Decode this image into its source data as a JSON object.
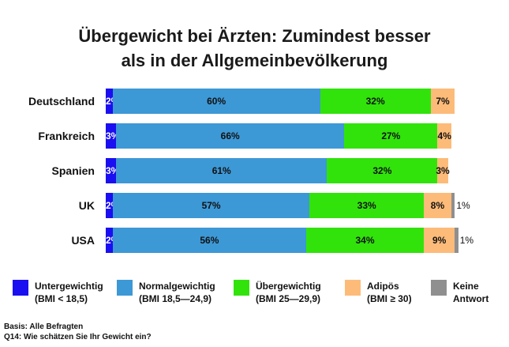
{
  "title_lines": [
    "Übergewicht bei Ärzten: Zumindest besser",
    "als in der Allgemeinbevölkerung"
  ],
  "chart_data": {
    "type": "bar",
    "orientation": "horizontal",
    "stacked": true,
    "title": "Übergewicht bei Ärzten: Zumindest besser als in der Allgemeinbevölkerung",
    "categories": [
      "Deutschland",
      "Frankreich",
      "Spanien",
      "UK",
      "USA"
    ],
    "series": [
      {
        "name": "Untergewichtig (BMI < 18,5)",
        "color": "#1a0ff0",
        "values": [
          2,
          3,
          3,
          2,
          2
        ],
        "labels": [
          "2%",
          "3%",
          "3%",
          "2%",
          "2%"
        ]
      },
      {
        "name": "Normalgewichtig (BMI 18,5—24,9)",
        "color": "#3d98d6",
        "values": [
          60,
          66,
          61,
          57,
          56
        ],
        "labels": [
          "60%",
          "66%",
          "61%",
          "57%",
          "56%"
        ]
      },
      {
        "name": "Übergewichtig (BMI 25—29,9)",
        "color": "#31e30b",
        "values": [
          32,
          27,
          32,
          33,
          34
        ],
        "labels": [
          "32%",
          "27%",
          "32%",
          "33%",
          "34%"
        ]
      },
      {
        "name": "Adipös (BMI ≥ 30)",
        "color": "#fdbb79",
        "values": [
          7,
          4,
          3,
          8,
          9
        ],
        "labels": [
          "7%",
          "4%",
          "3%",
          "8%",
          "9%"
        ]
      },
      {
        "name": "Keine Antwort",
        "color": "#8f8f8f",
        "values": [
          0,
          0,
          0,
          1,
          1
        ],
        "labels": [
          "",
          "",
          "",
          "1%",
          "1%"
        ]
      }
    ],
    "xlim": [
      0,
      100
    ]
  },
  "legend": [
    {
      "line1": "Untergewichtig",
      "line2": "(BMI < 18,5)",
      "color": "#1a0ff0"
    },
    {
      "line1": "Normalgewichtig",
      "line2": "(BMI 18,5—24,9)",
      "color": "#3d98d6"
    },
    {
      "line1": "Übergewichtig",
      "line2": "(BMI 25—29,9)",
      "color": "#31e30b"
    },
    {
      "line1": "Adipös",
      "line2": "(BMI ≥ 30)",
      "color": "#fdbb79"
    },
    {
      "line1": "Keine",
      "line2": "Antwort",
      "color": "#8f8f8f"
    }
  ],
  "footer": {
    "basis": "Basis: Alle Befragten",
    "question": "Q14: Wie schätzen Sie Ihr Gewicht ein?"
  }
}
